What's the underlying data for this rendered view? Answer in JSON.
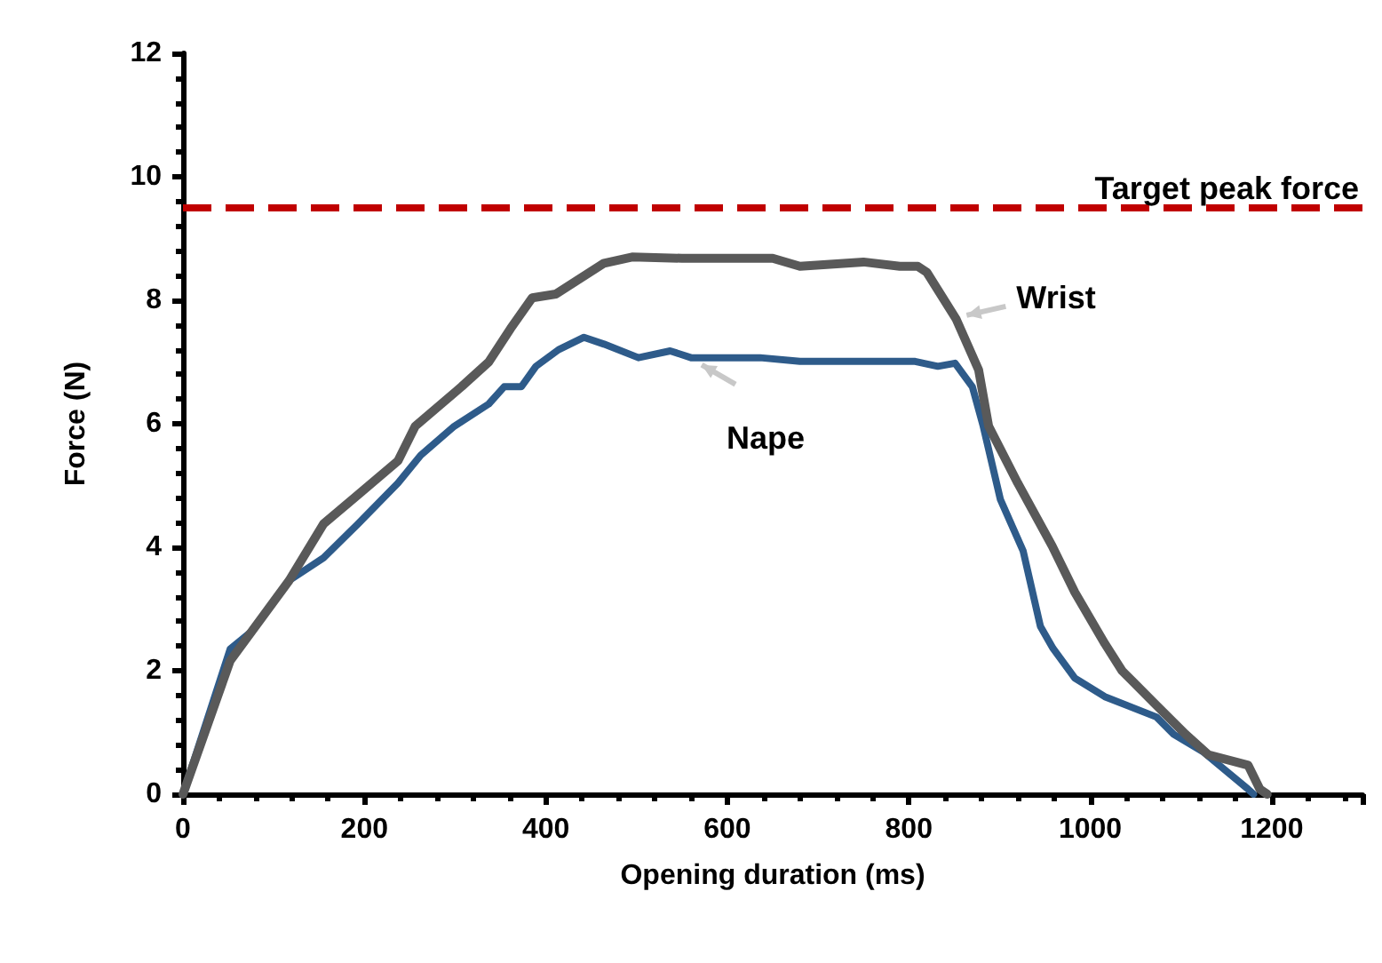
{
  "chart_data": {
    "type": "line",
    "xlabel": "Opening duration (ms)",
    "ylabel": "Force (N)",
    "xlim": [
      0,
      1300
    ],
    "xticks": [
      0,
      200,
      400,
      600,
      800,
      1000,
      1200
    ],
    "ylim": [
      0,
      12
    ],
    "yticks": [
      0,
      2,
      4,
      6,
      8,
      10,
      12
    ],
    "grid": false,
    "legend": false,
    "marker": "none",
    "line_style": "solid",
    "series": [
      {
        "name": "Wrist",
        "color": "#595959",
        "x": [
          0,
          52,
          117,
          155,
          193,
          237,
          256,
          307,
          337,
          361,
          385,
          411,
          464,
          495,
          550,
          600,
          650,
          680,
          750,
          790,
          810,
          820,
          852,
          877,
          888,
          920,
          958,
          983,
          1016,
          1035,
          1073,
          1105,
          1130,
          1174,
          1187,
          1195
        ],
        "values": [
          0,
          2.16,
          3.46,
          4.38,
          4.85,
          5.4,
          5.96,
          6.6,
          7.0,
          7.54,
          8.04,
          8.1,
          8.6,
          8.7,
          8.68,
          8.68,
          8.68,
          8.55,
          8.62,
          8.55,
          8.55,
          8.45,
          7.7,
          6.87,
          5.96,
          5.04,
          4.02,
          3.27,
          2.44,
          2.0,
          1.44,
          0.97,
          0.64,
          0.47,
          0.08,
          0
        ]
      },
      {
        "name": "Nape",
        "color": "#2e5b8a",
        "x": [
          0,
          52,
          75,
          117,
          155,
          193,
          237,
          262,
          299,
          337,
          354,
          373,
          389,
          414,
          442,
          464,
          502,
          537,
          560,
          636,
          680,
          807,
          832,
          851,
          870,
          882,
          901,
          926,
          945,
          959,
          983,
          1016,
          1073,
          1092,
          1124,
          1174,
          1180
        ],
        "values": [
          0,
          2.35,
          2.63,
          3.46,
          3.83,
          4.38,
          5.04,
          5.49,
          5.96,
          6.32,
          6.6,
          6.6,
          6.93,
          7.2,
          7.4,
          7.29,
          7.07,
          7.18,
          7.07,
          7.07,
          7.01,
          7.01,
          6.93,
          6.98,
          6.6,
          5.96,
          4.77,
          3.94,
          2.72,
          2.36,
          1.88,
          1.58,
          1.25,
          0.97,
          0.69,
          0.08,
          0
        ]
      }
    ],
    "ref_lines": [
      {
        "axis": "y",
        "value": 9.5,
        "label": "Target peak force",
        "color": "#c00000",
        "line_style": "dashed"
      }
    ]
  }
}
